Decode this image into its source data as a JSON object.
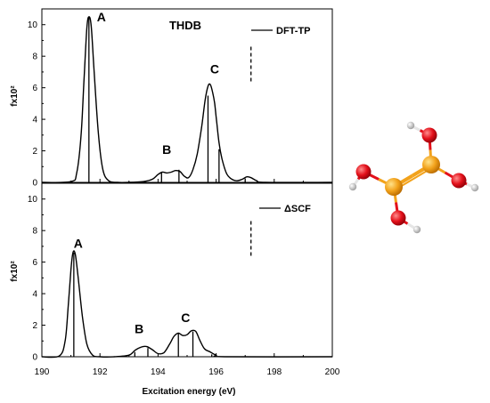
{
  "chart_data": [
    {
      "type": "line",
      "title": "THDB",
      "legend_label": "DFT-TP",
      "legend_placement": "top-right",
      "ylabel": "fx10²",
      "xlabel": "",
      "xlim": [
        190,
        200
      ],
      "ylim": [
        0,
        11
      ],
      "yticks": [
        0,
        2,
        4,
        6,
        8,
        10
      ],
      "curve": {
        "x": [
          190.0,
          191.0,
          191.2,
          191.35,
          191.45,
          191.55,
          191.62,
          191.7,
          191.8,
          191.95,
          192.1,
          192.3,
          192.6,
          193.0,
          193.5,
          193.8,
          194.0,
          194.15,
          194.3,
          194.45,
          194.6,
          194.75,
          194.9,
          195.05,
          195.2,
          195.35,
          195.5,
          195.62,
          195.72,
          195.8,
          195.88,
          195.95,
          196.02,
          196.1,
          196.2,
          196.35,
          196.5,
          196.7,
          196.9,
          197.05,
          197.2,
          197.4,
          197.7,
          200.0
        ],
        "y": [
          0,
          0.05,
          0.6,
          3.0,
          6.5,
          9.8,
          10.5,
          9.9,
          7.0,
          3.0,
          0.8,
          0.1,
          0,
          0,
          0.05,
          0.2,
          0.5,
          0.65,
          0.6,
          0.65,
          0.75,
          0.7,
          0.4,
          0.3,
          0.8,
          1.8,
          3.5,
          5.2,
          6.1,
          6.2,
          5.7,
          5.0,
          3.8,
          2.5,
          1.5,
          0.6,
          0.25,
          0.1,
          0.2,
          0.35,
          0.3,
          0.1,
          0,
          0
        ]
      },
      "sticks": [
        {
          "x": 191.62,
          "y": 10.5
        },
        {
          "x": 194.12,
          "y": 0.65
        },
        {
          "x": 194.72,
          "y": 0.8
        },
        {
          "x": 195.72,
          "y": 5.5
        },
        {
          "x": 196.1,
          "y": 2.1
        },
        {
          "x": 197.0,
          "y": 0.25
        }
      ],
      "dashed_marker": {
        "x": 197.2,
        "y0": 6.4,
        "y1": 8.6
      },
      "annotations": [
        {
          "text": "A",
          "x": 192.05,
          "y": 10.2
        },
        {
          "text": "B",
          "x": 194.3,
          "y": 1.8
        },
        {
          "text": "C",
          "x": 195.95,
          "y": 6.9
        }
      ]
    },
    {
      "type": "line",
      "title": "",
      "legend_label": "ΔSCF",
      "legend_placement": "top-right",
      "ylabel": "fx10²",
      "xlabel": "Excitation energy (eV)",
      "xlim": [
        190,
        200
      ],
      "ylim": [
        0,
        11
      ],
      "xticks": [
        190,
        192,
        194,
        196,
        198,
        200
      ],
      "yticks": [
        0,
        2,
        4,
        6,
        8,
        10
      ],
      "curve": {
        "x": [
          190.0,
          190.6,
          190.8,
          190.9,
          191.0,
          191.07,
          191.15,
          191.25,
          191.4,
          191.55,
          191.75,
          192.0,
          192.5,
          193.0,
          193.2,
          193.4,
          193.6,
          193.8,
          194.0,
          194.2,
          194.4,
          194.55,
          194.7,
          194.85,
          195.0,
          195.15,
          195.3,
          195.45,
          195.6,
          195.8,
          196.0,
          196.3,
          200.0
        ],
        "y": [
          0,
          0.05,
          1.0,
          3.0,
          5.5,
          6.6,
          6.5,
          5.0,
          2.5,
          0.8,
          0.1,
          0,
          0,
          0.1,
          0.4,
          0.6,
          0.65,
          0.45,
          0.2,
          0.25,
          0.8,
          1.3,
          1.5,
          1.35,
          1.4,
          1.65,
          1.6,
          1.0,
          0.5,
          0.3,
          0.1,
          0,
          0
        ]
      },
      "sticks": [
        {
          "x": 191.1,
          "y": 6.6
        },
        {
          "x": 193.2,
          "y": 0.3
        },
        {
          "x": 193.65,
          "y": 0.55
        },
        {
          "x": 194.7,
          "y": 1.5
        },
        {
          "x": 195.2,
          "y": 1.6
        },
        {
          "x": 195.85,
          "y": 0.15
        }
      ],
      "dashed_marker": {
        "x": 197.2,
        "y0": 6.4,
        "y1": 8.6
      },
      "annotations": [
        {
          "text": "A",
          "x": 191.25,
          "y": 6.9
        },
        {
          "text": "B",
          "x": 193.35,
          "y": 1.5
        },
        {
          "text": "C",
          "x": 194.95,
          "y": 2.2
        }
      ]
    }
  ],
  "molecule": {
    "atoms": [
      {
        "element": "B",
        "color": "#f2a21b"
      },
      {
        "element": "B",
        "color": "#f2a21b"
      },
      {
        "element": "O",
        "color": "#e3101a"
      },
      {
        "element": "O",
        "color": "#e3101a"
      },
      {
        "element": "O",
        "color": "#e3101a"
      },
      {
        "element": "O",
        "color": "#e3101a"
      },
      {
        "element": "H",
        "color": "#e6e6e6"
      },
      {
        "element": "H",
        "color": "#e6e6e6"
      },
      {
        "element": "H",
        "color": "#e6e6e6"
      },
      {
        "element": "H",
        "color": "#e6e6e6"
      }
    ]
  }
}
